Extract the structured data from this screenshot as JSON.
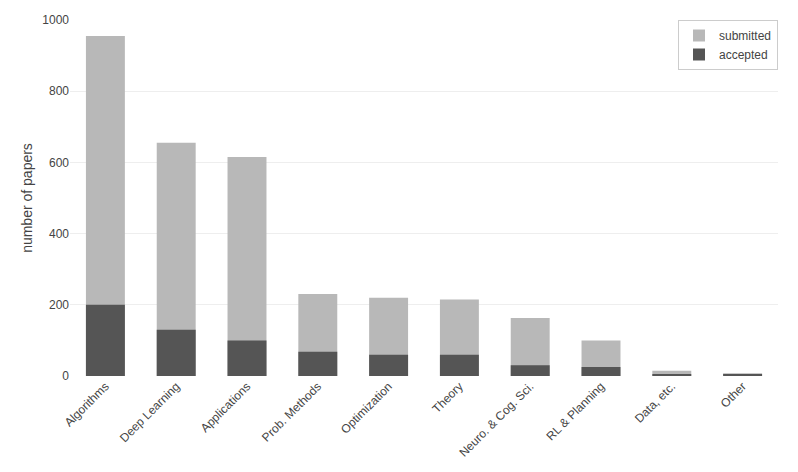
{
  "chart_data": {
    "type": "bar",
    "categories": [
      "Algorithms",
      "Deep Learning",
      "Applications",
      "Prob. Methods",
      "Optimization",
      "Theory",
      "Neuro. & Cog. Sci.",
      "RL & Planning",
      "Data, etc.",
      "Other"
    ],
    "series": [
      {
        "name": "submitted",
        "color": "#b8b8b8",
        "values": [
          955,
          655,
          615,
          230,
          220,
          215,
          163,
          100,
          15,
          8
        ]
      },
      {
        "name": "accepted",
        "color": "#555555",
        "values": [
          200,
          130,
          100,
          68,
          60,
          60,
          30,
          25,
          5,
          5
        ]
      }
    ],
    "ylabel": "number of papers",
    "ylim": [
      0,
      1000
    ],
    "yticks": [
      0,
      200,
      400,
      600,
      800,
      1000
    ],
    "stacked": false,
    "grid": true,
    "legend": "upper right"
  }
}
